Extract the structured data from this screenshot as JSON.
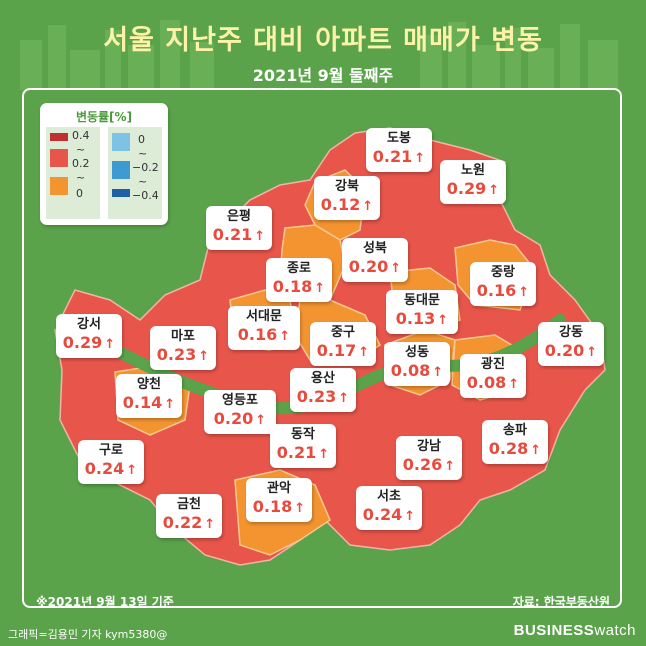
{
  "header": {
    "title": "서울 지난주 대비 아파트 매매가 변동",
    "subtitle": "2021년 9월 둘째주"
  },
  "legend": {
    "title": "변동률[%]",
    "positive_values": [
      "0.4",
      "0.2",
      "0"
    ],
    "negative_values": [
      "0",
      "−0.2",
      "−0.4"
    ],
    "separators": [
      "~",
      "~"
    ]
  },
  "colors": {
    "background": "#5aa34a",
    "high": "#e8554a",
    "low": "#f39430",
    "river": "#5aa34a",
    "value_text": "#e84a3e"
  },
  "districts": [
    {
      "name": "도봉",
      "value": "0.21",
      "arrow": "↑",
      "level": "high"
    },
    {
      "name": "노원",
      "value": "0.29",
      "arrow": "↑",
      "level": "high"
    },
    {
      "name": "강북",
      "value": "0.12",
      "arrow": "↑",
      "level": "low"
    },
    {
      "name": "은평",
      "value": "0.21",
      "arrow": "↑",
      "level": "high"
    },
    {
      "name": "성북",
      "value": "0.20",
      "arrow": "↑",
      "level": "high"
    },
    {
      "name": "종로",
      "value": "0.18",
      "arrow": "↑",
      "level": "low"
    },
    {
      "name": "중랑",
      "value": "0.16",
      "arrow": "↑",
      "level": "low"
    },
    {
      "name": "동대문",
      "value": "0.13",
      "arrow": "↑",
      "level": "low"
    },
    {
      "name": "서대문",
      "value": "0.16",
      "arrow": "↑",
      "level": "low"
    },
    {
      "name": "강서",
      "value": "0.29",
      "arrow": "↑",
      "level": "high"
    },
    {
      "name": "마포",
      "value": "0.23",
      "arrow": "↑",
      "level": "high"
    },
    {
      "name": "중구",
      "value": "0.17",
      "arrow": "↑",
      "level": "low"
    },
    {
      "name": "강동",
      "value": "0.20",
      "arrow": "↑",
      "level": "high"
    },
    {
      "name": "성동",
      "value": "0.08",
      "arrow": "↑",
      "level": "low"
    },
    {
      "name": "광진",
      "value": "0.08",
      "arrow": "↑",
      "level": "low"
    },
    {
      "name": "용산",
      "value": "0.23",
      "arrow": "↑",
      "level": "high"
    },
    {
      "name": "양천",
      "value": "0.14",
      "arrow": "↑",
      "level": "low"
    },
    {
      "name": "영등포",
      "value": "0.20",
      "arrow": "↑",
      "level": "high"
    },
    {
      "name": "송파",
      "value": "0.28",
      "arrow": "↑",
      "level": "high"
    },
    {
      "name": "동작",
      "value": "0.21",
      "arrow": "↑",
      "level": "high"
    },
    {
      "name": "강남",
      "value": "0.26",
      "arrow": "↑",
      "level": "high"
    },
    {
      "name": "구로",
      "value": "0.24",
      "arrow": "↑",
      "level": "high"
    },
    {
      "name": "관악",
      "value": "0.18",
      "arrow": "↑",
      "level": "low"
    },
    {
      "name": "서초",
      "value": "0.24",
      "arrow": "↑",
      "level": "high"
    },
    {
      "name": "금천",
      "value": "0.22",
      "arrow": "↑",
      "level": "high"
    }
  ],
  "footer": {
    "note": "※2021년 9월 13일 기준",
    "source": "자료: 한국부동산원",
    "credit": "그래픽=김용민 기자 kym5380@",
    "brand_bold": "BUSINESS",
    "brand_light": "watch"
  }
}
